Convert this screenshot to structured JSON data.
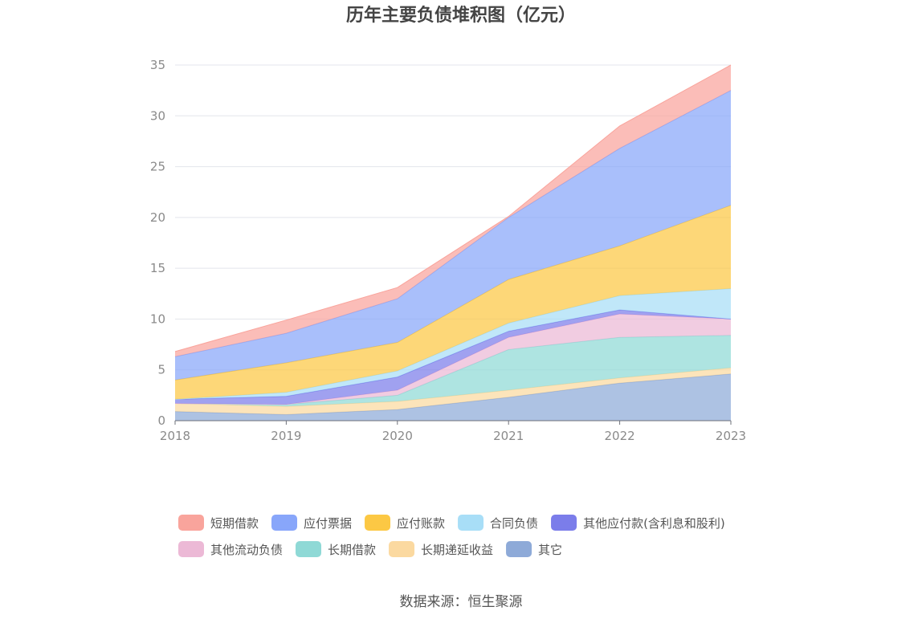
{
  "chart_data": {
    "type": "area",
    "stacked": true,
    "title": "历年主要负债堆积图（亿元）",
    "x": [
      "2018",
      "2019",
      "2020",
      "2021",
      "2022",
      "2023"
    ],
    "ylim": [
      0,
      35
    ],
    "yticks": [
      "0",
      "5",
      "10",
      "15",
      "20",
      "25",
      "30",
      "35"
    ],
    "grid": true,
    "legend_position": "bottom",
    "series": [
      {
        "name": "其它",
        "color": "#8eaad8",
        "values": [
          0.9,
          0.6,
          1.1,
          2.3,
          3.7,
          4.6
        ]
      },
      {
        "name": "长期递延收益",
        "color": "#fbd9a0",
        "values": [
          0.8,
          0.8,
          0.8,
          0.7,
          0.5,
          0.6
        ]
      },
      {
        "name": "长期借款",
        "color": "#8fd9d6",
        "values": [
          0.0,
          0.2,
          0.6,
          4.0,
          4.0,
          3.2
        ]
      },
      {
        "name": "其他流动负债",
        "color": "#ecb9d6",
        "values": [
          0.0,
          0.0,
          0.5,
          1.2,
          2.3,
          1.6
        ]
      },
      {
        "name": "其他应付款(含利息和股利)",
        "color": "#7b7dea",
        "values": [
          0.4,
          0.8,
          1.3,
          0.6,
          0.4,
          0.0
        ]
      },
      {
        "name": "合同负债",
        "color": "#a8def7",
        "values": [
          0.0,
          0.4,
          0.6,
          0.8,
          1.4,
          3.0
        ]
      },
      {
        "name": "应付账款",
        "color": "#fcc844",
        "values": [
          1.9,
          2.9,
          2.8,
          4.3,
          4.9,
          8.2
        ]
      },
      {
        "name": "应付票据",
        "color": "#88a6fa",
        "values": [
          2.3,
          2.9,
          4.3,
          6.1,
          9.6,
          11.3
        ]
      },
      {
        "name": "短期借款",
        "color": "#f9a49c",
        "values": [
          0.5,
          1.3,
          1.1,
          0.1,
          2.2,
          2.5
        ]
      }
    ],
    "legend_order": [
      "短期借款",
      "应付票据",
      "应付账款",
      "合同负债",
      "其他应付款(含利息和股利)",
      "其他流动负债",
      "长期借款",
      "长期递延收益",
      "其它"
    ]
  },
  "source": "数据来源：恒生聚源"
}
